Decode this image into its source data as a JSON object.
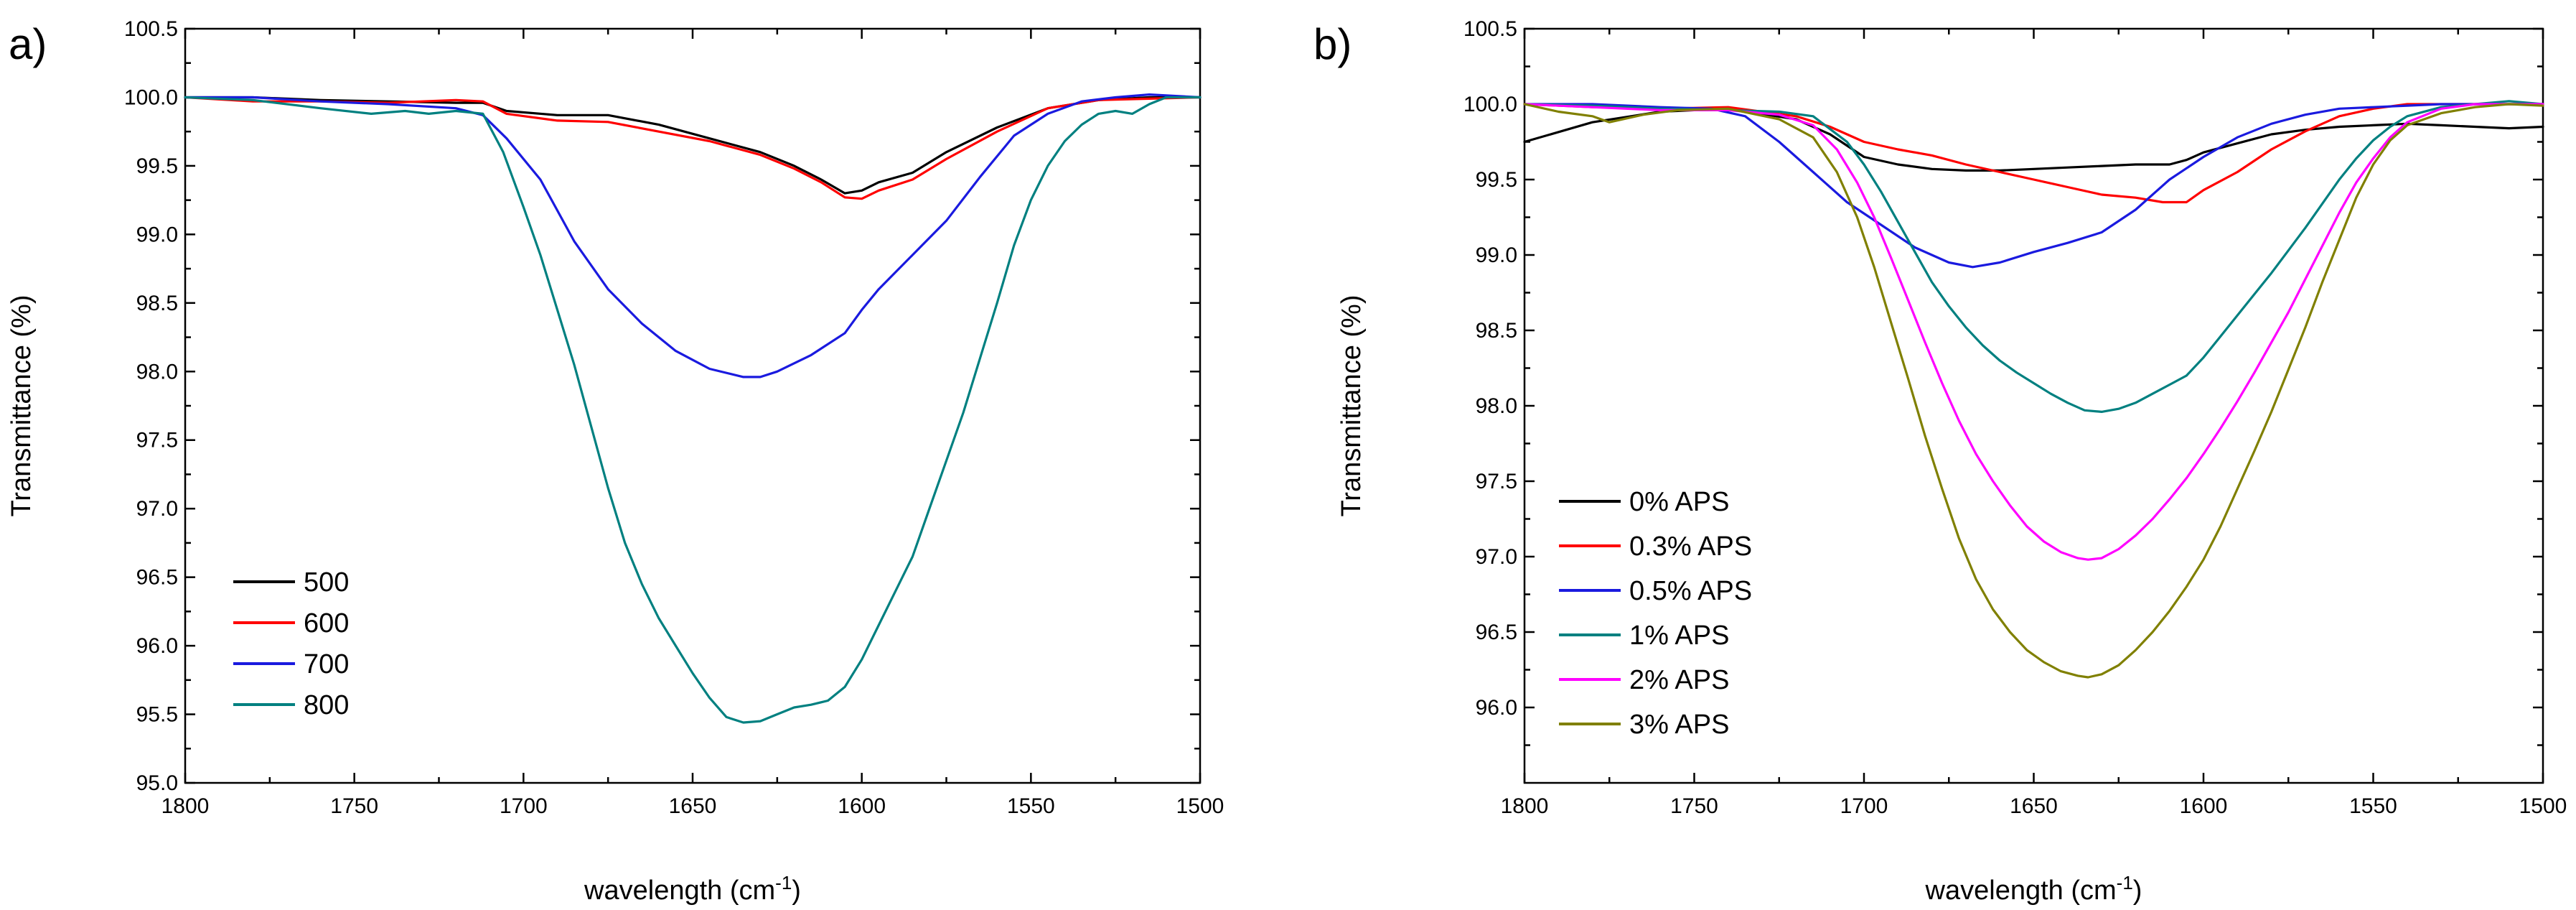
{
  "chart_data": [
    {
      "type": "line",
      "panel_label": "a)",
      "xlabel": "wavelength (cm",
      "xlabel_sup": "-1",
      "xlabel_end": ")",
      "ylabel": "Transmittance (%)",
      "xlim": [
        1800,
        1500
      ],
      "ylim": [
        95.0,
        100.5
      ],
      "xticks": [
        "1800",
        "1750",
        "1700",
        "1650",
        "1600",
        "1550",
        "1500"
      ],
      "yticks": [
        "95.0",
        "95.5",
        "96.0",
        "96.5",
        "97.0",
        "97.5",
        "98.0",
        "98.5",
        "99.0",
        "99.5",
        "100.0",
        "100.5"
      ],
      "legend_position": "bottom-left",
      "series": [
        {
          "name": "500",
          "color": "#000000",
          "x": [
            1800,
            1780,
            1760,
            1740,
            1720,
            1712,
            1705,
            1690,
            1675,
            1660,
            1645,
            1630,
            1620,
            1612,
            1605,
            1600,
            1595,
            1585,
            1575,
            1560,
            1545,
            1530,
            1515,
            1500
          ],
          "y": [
            100.0,
            100.0,
            99.98,
            99.97,
            99.96,
            99.96,
            99.9,
            99.87,
            99.87,
            99.8,
            99.7,
            99.6,
            99.5,
            99.4,
            99.3,
            99.32,
            99.38,
            99.45,
            99.6,
            99.78,
            99.92,
            99.98,
            100.0,
            100.0
          ]
        },
        {
          "name": "600",
          "color": "#ff0000",
          "x": [
            1800,
            1780,
            1760,
            1740,
            1720,
            1712,
            1705,
            1690,
            1675,
            1660,
            1645,
            1630,
            1620,
            1612,
            1605,
            1600,
            1595,
            1585,
            1575,
            1560,
            1545,
            1530,
            1515,
            1500
          ],
          "y": [
            100.0,
            99.97,
            99.97,
            99.96,
            99.98,
            99.97,
            99.88,
            99.83,
            99.82,
            99.75,
            99.68,
            99.58,
            99.48,
            99.38,
            99.27,
            99.26,
            99.32,
            99.4,
            99.55,
            99.75,
            99.92,
            99.98,
            99.99,
            100.0
          ]
        },
        {
          "name": "700",
          "color": "#1a1adf",
          "x": [
            1800,
            1780,
            1760,
            1740,
            1720,
            1712,
            1705,
            1695,
            1685,
            1675,
            1665,
            1655,
            1645,
            1635,
            1630,
            1625,
            1615,
            1605,
            1600,
            1595,
            1585,
            1575,
            1565,
            1555,
            1545,
            1535,
            1525,
            1515,
            1500
          ],
          "y": [
            100.0,
            100.0,
            99.97,
            99.95,
            99.92,
            99.87,
            99.7,
            99.4,
            98.95,
            98.6,
            98.35,
            98.15,
            98.02,
            97.96,
            97.96,
            98.0,
            98.12,
            98.28,
            98.45,
            98.6,
            98.85,
            99.1,
            99.42,
            99.72,
            99.88,
            99.97,
            100.0,
            100.02,
            100.0
          ]
        },
        {
          "name": "800",
          "color": "#008080",
          "x": [
            1800,
            1780,
            1760,
            1745,
            1735,
            1728,
            1720,
            1712,
            1706,
            1700,
            1695,
            1690,
            1685,
            1680,
            1675,
            1670,
            1665,
            1660,
            1655,
            1650,
            1645,
            1640,
            1635,
            1630,
            1625,
            1620,
            1615,
            1610,
            1605,
            1600,
            1595,
            1590,
            1585,
            1580,
            1575,
            1570,
            1565,
            1560,
            1555,
            1550,
            1545,
            1540,
            1535,
            1530,
            1525,
            1520,
            1515,
            1510,
            1505,
            1500
          ],
          "y": [
            100.0,
            99.98,
            99.92,
            99.88,
            99.9,
            99.88,
            99.9,
            99.88,
            99.6,
            99.2,
            98.85,
            98.45,
            98.05,
            97.6,
            97.15,
            96.75,
            96.45,
            96.2,
            96.0,
            95.8,
            95.62,
            95.48,
            95.44,
            95.45,
            95.5,
            95.55,
            95.57,
            95.6,
            95.7,
            95.9,
            96.15,
            96.4,
            96.65,
            97.0,
            97.35,
            97.7,
            98.1,
            98.5,
            98.92,
            99.25,
            99.5,
            99.68,
            99.8,
            99.88,
            99.9,
            99.88,
            99.95,
            100.0,
            100.0,
            100.0
          ]
        }
      ]
    },
    {
      "type": "line",
      "panel_label": "b)",
      "xlabel": "wavelength (cm",
      "xlabel_sup": "-1",
      "xlabel_end": ")",
      "ylabel": "Transmittance (%)",
      "xlim": [
        1800,
        1500
      ],
      "ylim": [
        95.5,
        100.5
      ],
      "xticks": [
        "1800",
        "1750",
        "1700",
        "1650",
        "1600",
        "1550",
        "1500"
      ],
      "yticks": [
        "96.0",
        "96.5",
        "97.0",
        "97.5",
        "98.0",
        "98.5",
        "99.0",
        "99.5",
        "100.0",
        "100.5"
      ],
      "legend_position": "bottom-left",
      "series": [
        {
          "name": "0% APS",
          "color": "#000000",
          "x": [
            1800,
            1780,
            1760,
            1740,
            1720,
            1710,
            1700,
            1690,
            1680,
            1670,
            1660,
            1650,
            1640,
            1630,
            1620,
            1610,
            1605,
            1600,
            1590,
            1580,
            1570,
            1560,
            1550,
            1540,
            1530,
            1520,
            1510,
            1500
          ],
          "y": [
            99.75,
            99.88,
            99.95,
            99.97,
            99.9,
            99.8,
            99.65,
            99.6,
            99.57,
            99.56,
            99.56,
            99.57,
            99.58,
            99.59,
            99.6,
            99.6,
            99.63,
            99.68,
            99.74,
            99.8,
            99.83,
            99.85,
            99.86,
            99.87,
            99.86,
            99.85,
            99.84,
            99.85
          ]
        },
        {
          "name": "0.3% APS",
          "color": "#ff0000",
          "x": [
            1800,
            1780,
            1760,
            1740,
            1720,
            1710,
            1700,
            1690,
            1680,
            1670,
            1660,
            1650,
            1640,
            1630,
            1620,
            1612,
            1605,
            1600,
            1590,
            1580,
            1570,
            1560,
            1550,
            1540,
            1530,
            1520,
            1510,
            1500
          ],
          "y": [
            100.0,
            99.98,
            99.97,
            99.98,
            99.92,
            99.85,
            99.75,
            99.7,
            99.66,
            99.6,
            99.55,
            99.5,
            99.45,
            99.4,
            99.38,
            99.35,
            99.35,
            99.43,
            99.55,
            99.7,
            99.82,
            99.92,
            99.97,
            100.0,
            100.0,
            100.0,
            100.0,
            100.0
          ]
        },
        {
          "name": "0.5% APS",
          "color": "#1a1adf",
          "x": [
            1800,
            1780,
            1760,
            1745,
            1735,
            1725,
            1715,
            1705,
            1695,
            1685,
            1675,
            1668,
            1660,
            1650,
            1640,
            1630,
            1620,
            1610,
            1600,
            1590,
            1580,
            1570,
            1560,
            1550,
            1540,
            1530,
            1520,
            1510,
            1500
          ],
          "y": [
            100.0,
            100.0,
            99.98,
            99.97,
            99.92,
            99.75,
            99.55,
            99.35,
            99.2,
            99.05,
            98.95,
            98.92,
            98.95,
            99.02,
            99.08,
            99.15,
            99.3,
            99.5,
            99.65,
            99.78,
            99.87,
            99.93,
            99.97,
            99.98,
            99.99,
            100.0,
            100.0,
            100.0,
            100.0
          ]
        },
        {
          "name": "1% APS",
          "color": "#008080",
          "x": [
            1800,
            1780,
            1760,
            1740,
            1725,
            1715,
            1705,
            1700,
            1695,
            1690,
            1685,
            1680,
            1675,
            1670,
            1665,
            1660,
            1655,
            1650,
            1645,
            1640,
            1635,
            1630,
            1625,
            1620,
            1615,
            1610,
            1605,
            1600,
            1595,
            1590,
            1585,
            1580,
            1575,
            1570,
            1565,
            1560,
            1555,
            1550,
            1545,
            1540,
            1530,
            1520,
            1510,
            1500
          ],
          "y": [
            100.0,
            99.99,
            99.97,
            99.96,
            99.95,
            99.92,
            99.75,
            99.6,
            99.42,
            99.22,
            99.02,
            98.82,
            98.66,
            98.52,
            98.4,
            98.3,
            98.22,
            98.15,
            98.08,
            98.02,
            97.97,
            97.96,
            97.98,
            98.02,
            98.08,
            98.14,
            98.2,
            98.32,
            98.46,
            98.6,
            98.74,
            98.88,
            99.03,
            99.18,
            99.34,
            99.5,
            99.64,
            99.76,
            99.85,
            99.92,
            99.98,
            100.0,
            100.02,
            100.0
          ]
        },
        {
          "name": "2% APS",
          "color": "#ff00ff",
          "x": [
            1800,
            1780,
            1760,
            1740,
            1725,
            1715,
            1708,
            1702,
            1697,
            1692,
            1687,
            1682,
            1677,
            1672,
            1667,
            1662,
            1657,
            1652,
            1647,
            1642,
            1637,
            1634,
            1630,
            1625,
            1620,
            1615,
            1610,
            1605,
            1600,
            1595,
            1590,
            1585,
            1580,
            1575,
            1570,
            1565,
            1560,
            1555,
            1550,
            1545,
            1540,
            1530,
            1520,
            1510,
            1500
          ],
          "y": [
            100.0,
            99.98,
            99.96,
            99.96,
            99.93,
            99.86,
            99.7,
            99.48,
            99.25,
            98.98,
            98.7,
            98.42,
            98.15,
            97.9,
            97.68,
            97.5,
            97.34,
            97.2,
            97.1,
            97.03,
            96.99,
            96.98,
            96.99,
            97.05,
            97.14,
            97.25,
            97.38,
            97.52,
            97.68,
            97.85,
            98.03,
            98.22,
            98.42,
            98.62,
            98.84,
            99.06,
            99.28,
            99.48,
            99.64,
            99.78,
            99.88,
            99.97,
            100.0,
            100.0,
            100.0
          ]
        },
        {
          "name": "3% APS",
          "color": "#808000",
          "x": [
            1800,
            1790,
            1780,
            1775,
            1765,
            1755,
            1740,
            1725,
            1715,
            1708,
            1702,
            1697,
            1692,
            1687,
            1682,
            1677,
            1672,
            1667,
            1662,
            1657,
            1652,
            1647,
            1642,
            1637,
            1634,
            1630,
            1625,
            1620,
            1615,
            1610,
            1605,
            1600,
            1595,
            1590,
            1585,
            1580,
            1575,
            1570,
            1565,
            1560,
            1555,
            1550,
            1545,
            1540,
            1530,
            1520,
            1510,
            1500
          ],
          "y": [
            100.0,
            99.95,
            99.92,
            99.88,
            99.93,
            99.96,
            99.97,
            99.9,
            99.78,
            99.55,
            99.25,
            98.92,
            98.55,
            98.18,
            97.8,
            97.45,
            97.12,
            96.85,
            96.65,
            96.5,
            96.38,
            96.3,
            96.24,
            96.21,
            96.2,
            96.22,
            96.28,
            96.38,
            96.5,
            96.64,
            96.8,
            96.98,
            97.2,
            97.45,
            97.7,
            97.96,
            98.24,
            98.52,
            98.82,
            99.1,
            99.38,
            99.6,
            99.76,
            99.86,
            99.94,
            99.98,
            100.0,
            99.99
          ]
        }
      ]
    }
  ]
}
